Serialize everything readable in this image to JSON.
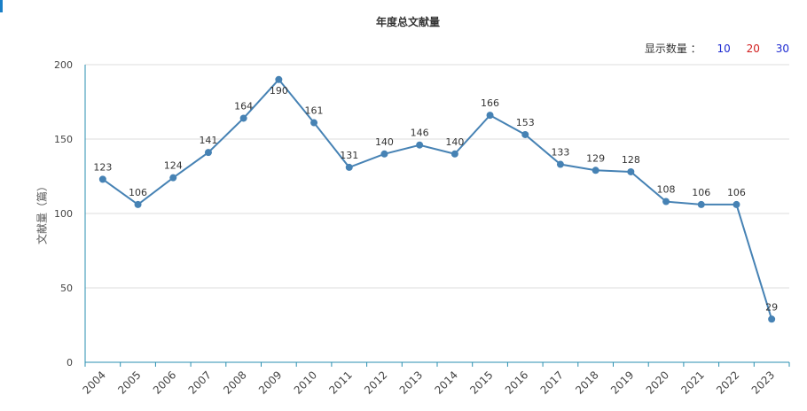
{
  "display_count": {
    "label": "显示数量 ：",
    "options": [
      "10",
      "20",
      "30"
    ]
  },
  "colors": {
    "line": "#4682b4",
    "axis": "#2a8fb0",
    "grid": "#dddddd"
  },
  "chart_data": {
    "type": "line",
    "title": "年度总文献量",
    "ylabel": "文献量（篇）",
    "xlabel": "",
    "ylim": [
      0,
      200
    ],
    "yticks": [
      0,
      50,
      100,
      150,
      200
    ],
    "grid": true,
    "categories": [
      "2004",
      "2005",
      "2006",
      "2007",
      "2008",
      "2009",
      "2010",
      "2011",
      "2012",
      "2013",
      "2014",
      "2015",
      "2016",
      "2017",
      "2018",
      "2019",
      "2020",
      "2021",
      "2022",
      "2023"
    ],
    "values": [
      123,
      106,
      124,
      141,
      164,
      190,
      161,
      131,
      140,
      146,
      140,
      166,
      153,
      133,
      129,
      128,
      108,
      106,
      106,
      29
    ]
  }
}
